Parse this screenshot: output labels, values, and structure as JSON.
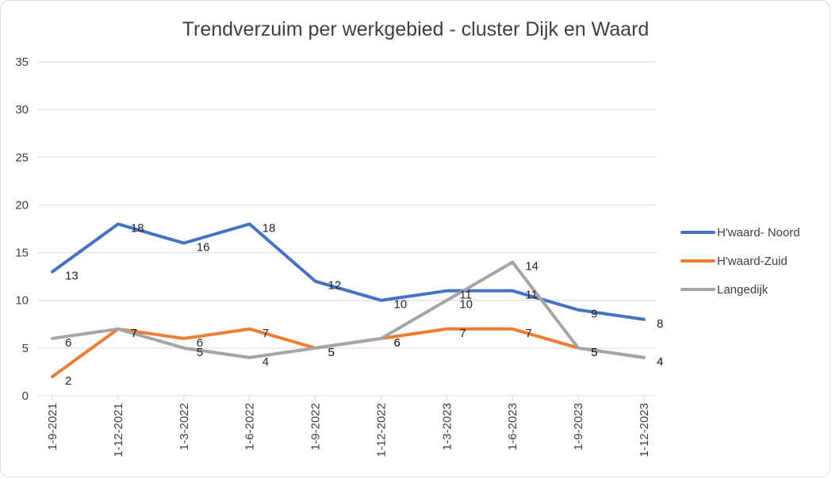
{
  "chart_data": {
    "type": "line",
    "title": "Trendverzuim per werkgebied - cluster Dijk en Waard",
    "xlabel": "",
    "ylabel": "",
    "categories": [
      "1-9-2021",
      "1-12-2021",
      "1-3-2022",
      "1-6-2022",
      "1-9-2022",
      "1-12-2022",
      "1-3-2023",
      "1-6-2023",
      "1-9-2023",
      "1-12-2023"
    ],
    "ylim": [
      0,
      35
    ],
    "yticks": [
      0,
      5,
      10,
      15,
      20,
      25,
      30,
      35
    ],
    "grid": true,
    "legend_position": "right",
    "series": [
      {
        "name": "H'waard- Noord",
        "color": "#4472c4",
        "values": [
          13,
          18,
          16,
          18,
          12,
          10,
          11,
          11,
          9,
          8
        ]
      },
      {
        "name": "H'waard-Zuid",
        "color": "#ed7d31",
        "values": [
          2,
          7,
          6,
          7,
          5,
          6,
          7,
          7,
          5,
          4
        ]
      },
      {
        "name": "Langedijk",
        "color": "#a5a5a5",
        "values": [
          6,
          7,
          5,
          4,
          5,
          6,
          10,
          14,
          5,
          4
        ]
      }
    ]
  }
}
